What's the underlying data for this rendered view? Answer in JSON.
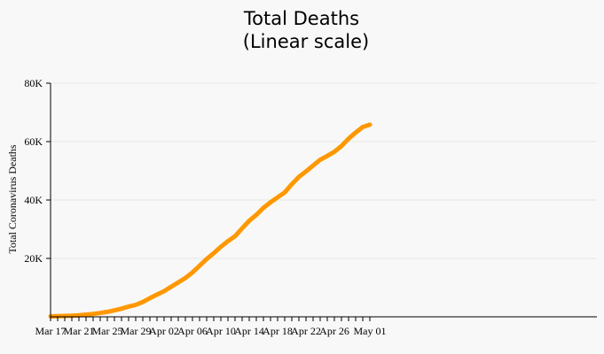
{
  "chart_data": {
    "type": "line",
    "title": [
      "Total Deaths",
      "(Linear scale)"
    ],
    "ylabel": "Total Coronavirus Deaths",
    "xlabel": "",
    "ylim": [
      0,
      80000
    ],
    "yticks": [
      {
        "value": 20000,
        "label": "20K"
      },
      {
        "value": 40000,
        "label": "40K"
      },
      {
        "value": 60000,
        "label": "60K"
      },
      {
        "value": 80000,
        "label": "80K"
      }
    ],
    "x_tick_labels": [
      "Mar 17",
      "Mar 21",
      "Mar 25",
      "Mar 29",
      "Apr 02",
      "Apr 06",
      "Apr 10",
      "Apr 14",
      "Apr 18",
      "Apr 22",
      "Apr 26",
      "May 01"
    ],
    "x_start": "Mar 17",
    "x_end": "Jun 02",
    "grid": true,
    "series": [
      {
        "color": "#ff9800",
        "x": [
          "Mar 17",
          "Mar 18",
          "Mar 19",
          "Mar 20",
          "Mar 21",
          "Mar 22",
          "Mar 23",
          "Mar 24",
          "Mar 25",
          "Mar 26",
          "Mar 27",
          "Mar 28",
          "Mar 29",
          "Mar 30",
          "Mar 31",
          "Apr 01",
          "Apr 02",
          "Apr 03",
          "Apr 04",
          "Apr 05",
          "Apr 06",
          "Apr 07",
          "Apr 08",
          "Apr 09",
          "Apr 10",
          "Apr 11",
          "Apr 12",
          "Apr 13",
          "Apr 14",
          "Apr 15",
          "Apr 16",
          "Apr 17",
          "Apr 18",
          "Apr 19",
          "Apr 20",
          "Apr 21",
          "Apr 22",
          "Apr 23",
          "Apr 24",
          "Apr 25",
          "Apr 26",
          "Apr 27",
          "Apr 28",
          "Apr 29",
          "Apr 30",
          "May 01"
        ],
        "values": [
          150,
          210,
          290,
          400,
          550,
          760,
          1000,
          1300,
          1700,
          2200,
          2800,
          3500,
          4100,
          5100,
          6400,
          7600,
          8800,
          10300,
          11800,
          13300,
          15200,
          17500,
          19800,
          21800,
          24000,
          25900,
          27600,
          30300,
          32900,
          34900,
          37300,
          39200,
          40900,
          42600,
          45400,
          47900,
          49800,
          51800,
          53800,
          55100,
          56500,
          58500,
          61000,
          63100,
          65000,
          65800
        ]
      }
    ]
  }
}
